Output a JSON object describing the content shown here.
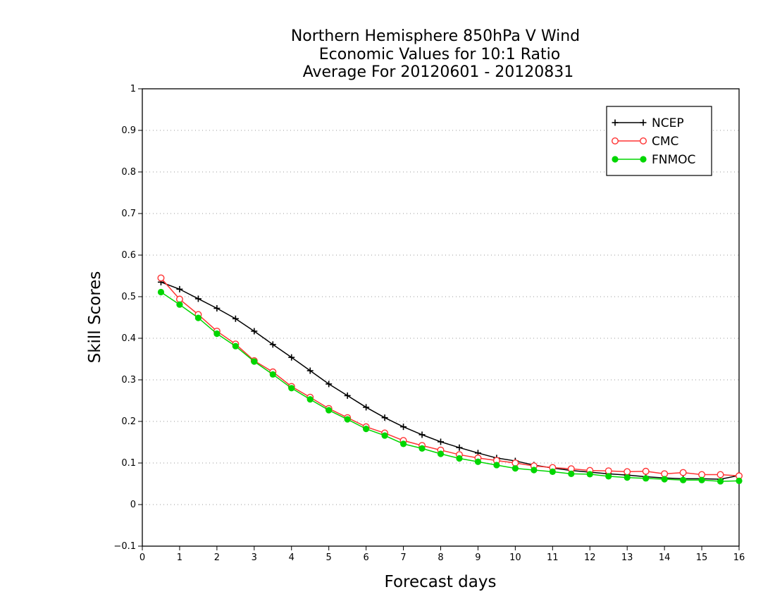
{
  "chart_data": {
    "type": "line",
    "title": [
      "Northern Hemisphere 850hPa V Wind",
      "Economic Values for 10:1 Ratio",
      "Average For 20120601 - 20120831"
    ],
    "xlabel": "Forecast days",
    "ylabel": "Skill Scores",
    "xlim": [
      0,
      16
    ],
    "ylim": [
      -0.1,
      1
    ],
    "xticks": [
      0,
      1,
      2,
      3,
      4,
      5,
      6,
      7,
      8,
      9,
      10,
      11,
      12,
      13,
      14,
      15,
      16
    ],
    "xtick_labels": [
      "0",
      "1",
      "2",
      "3",
      "4",
      "5",
      "6",
      "7",
      "8",
      "9",
      "10",
      "11",
      "12",
      "13",
      "14",
      "15",
      "16"
    ],
    "yticks": [
      -0.1,
      0,
      0.1,
      0.2,
      0.3,
      0.4,
      0.5,
      0.6,
      0.7,
      0.8,
      0.9,
      1
    ],
    "ytick_labels": [
      "−0.1",
      "0",
      "0.1",
      "0.2",
      "0.3",
      "0.4",
      "0.5",
      "0.6",
      "0.7",
      "0.8",
      "0.9",
      "1"
    ],
    "grid": "horizontal-dotted",
    "legend_position": "top-right",
    "x": [
      0.5,
      1,
      1.5,
      2,
      2.5,
      3,
      3.5,
      4,
      4.5,
      5,
      5.5,
      6,
      6.5,
      7,
      7.5,
      8,
      8.5,
      9,
      9.5,
      10,
      10.5,
      11,
      11.5,
      12,
      12.5,
      13,
      13.5,
      14,
      14.5,
      15,
      15.5,
      16
    ],
    "series": [
      {
        "name": "NCEP",
        "color": "#000000",
        "marker": "plus",
        "values": [
          0.535,
          0.518,
          0.495,
          0.472,
          0.447,
          0.417,
          0.385,
          0.354,
          0.322,
          0.29,
          0.262,
          0.234,
          0.209,
          0.187,
          0.168,
          0.151,
          0.137,
          0.124,
          0.112,
          0.105,
          0.095,
          0.088,
          0.082,
          0.078,
          0.074,
          0.071,
          0.067,
          0.064,
          0.062,
          0.062,
          0.061,
          0.07
        ]
      },
      {
        "name": "CMC",
        "color": "#ff3333",
        "marker": "open-circle",
        "values": [
          0.545,
          0.494,
          0.457,
          0.417,
          0.386,
          0.346,
          0.319,
          0.284,
          0.258,
          0.231,
          0.209,
          0.187,
          0.172,
          0.154,
          0.142,
          0.131,
          0.12,
          0.112,
          0.106,
          0.1,
          0.093,
          0.089,
          0.086,
          0.082,
          0.081,
          0.079,
          0.08,
          0.074,
          0.077,
          0.072,
          0.072,
          0.069
        ]
      },
      {
        "name": "FNMOC",
        "color": "#00d600",
        "marker": "filled-circle",
        "values": [
          0.511,
          0.481,
          0.449,
          0.411,
          0.381,
          0.344,
          0.313,
          0.28,
          0.253,
          0.227,
          0.205,
          0.182,
          0.166,
          0.146,
          0.135,
          0.122,
          0.111,
          0.103,
          0.095,
          0.087,
          0.083,
          0.079,
          0.074,
          0.073,
          0.068,
          0.065,
          0.063,
          0.061,
          0.059,
          0.059,
          0.056,
          0.057
        ]
      }
    ]
  }
}
